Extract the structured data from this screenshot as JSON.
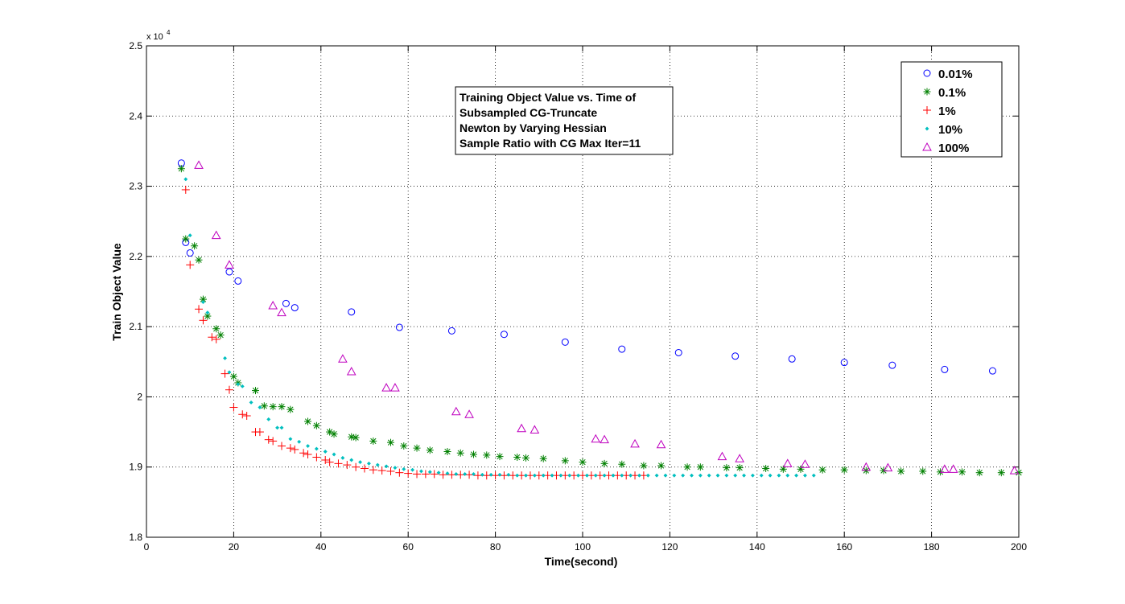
{
  "chart_data": {
    "type": "scatter",
    "title": "",
    "xlabel": "Time(second)",
    "ylabel": "Train Object Value",
    "xlim": [
      0,
      200
    ],
    "ylim": [
      18000,
      25000
    ],
    "x_ticks": [
      0,
      20,
      40,
      60,
      80,
      100,
      120,
      140,
      160,
      180,
      200
    ],
    "x_tick_labels": [
      "0",
      "20",
      "40",
      "60",
      "80",
      "100",
      "120",
      "140",
      "160",
      "180",
      "200"
    ],
    "y_ticks": [
      18000,
      19000,
      20000,
      21000,
      22000,
      23000,
      24000,
      25000
    ],
    "y_tick_labels": [
      "1.8",
      "1.9",
      "2",
      "2.1",
      "2.2",
      "2.3",
      "2.4",
      "2.5"
    ],
    "y_exponent_base": "x 10",
    "y_exponent_power": "4",
    "grid": true,
    "legend_position": "top-right",
    "annotation": [
      "Training Object Value vs. Time of",
      "Subsampled CG-Truncate",
      "Newton by Varying Hessian",
      "Sample Ratio with CG Max Iter=11"
    ],
    "series": [
      {
        "name": "0.01%",
        "marker": "circle",
        "color": "#0000ff",
        "x": [
          8,
          9,
          10,
          19,
          21,
          32,
          34,
          47,
          58,
          70,
          82,
          96,
          109,
          122,
          135,
          148,
          160,
          171,
          183,
          194
        ],
        "y": [
          23330,
          22200,
          22050,
          21780,
          21650,
          21330,
          21270,
          21210,
          20990,
          20940,
          20890,
          20780,
          20680,
          20630,
          20580,
          20540,
          20490,
          20450,
          20390,
          20370
        ]
      },
      {
        "name": "0.1%",
        "marker": "star",
        "color": "#008000",
        "x": [
          8,
          9,
          11,
          12,
          13,
          14,
          16,
          17,
          20,
          21,
          25,
          27,
          29,
          31,
          33,
          37,
          39,
          42,
          43,
          47,
          48,
          52,
          56,
          59,
          62,
          65,
          69,
          72,
          75,
          78,
          81,
          85,
          87,
          91,
          96,
          100,
          105,
          109,
          114,
          118,
          124,
          127,
          133,
          136,
          142,
          146,
          150,
          155,
          160,
          165,
          169,
          173,
          178,
          182,
          187,
          191,
          196,
          200
        ],
        "y": [
          23250,
          22250,
          22150,
          21950,
          21390,
          21150,
          20970,
          20880,
          20290,
          20200,
          20090,
          19870,
          19860,
          19860,
          19820,
          19650,
          19590,
          19500,
          19470,
          19430,
          19420,
          19370,
          19350,
          19300,
          19270,
          19240,
          19220,
          19200,
          19180,
          19170,
          19150,
          19140,
          19130,
          19120,
          19090,
          19070,
          19050,
          19040,
          19020,
          19020,
          19000,
          19000,
          18990,
          18990,
          18980,
          18970,
          18970,
          18960,
          18960,
          18950,
          18950,
          18940,
          18940,
          18930,
          18930,
          18920,
          18920,
          18920
        ]
      },
      {
        "name": "1%",
        "marker": "plus",
        "color": "#ff0000",
        "x": [
          9,
          10,
          12,
          13,
          15,
          16,
          18,
          19,
          20,
          22,
          23,
          25,
          26,
          28,
          29,
          31,
          33,
          34,
          36,
          37,
          39,
          41,
          42,
          44,
          46,
          48,
          50,
          52,
          54,
          56,
          58,
          60,
          62,
          64,
          66,
          68,
          70,
          72,
          74,
          76,
          78,
          80,
          82,
          84,
          86,
          88,
          90,
          92,
          94,
          96,
          98,
          100,
          102,
          104,
          106,
          108,
          110,
          112,
          114
        ],
        "y": [
          22950,
          21880,
          21250,
          21090,
          20850,
          20820,
          20330,
          20100,
          19850,
          19750,
          19730,
          19500,
          19500,
          19390,
          19370,
          19300,
          19270,
          19250,
          19200,
          19180,
          19140,
          19100,
          19070,
          19050,
          19030,
          19000,
          18980,
          18960,
          18950,
          18940,
          18920,
          18910,
          18900,
          18900,
          18900,
          18890,
          18890,
          18890,
          18890,
          18880,
          18880,
          18880,
          18880,
          18880,
          18880,
          18880,
          18880,
          18880,
          18880,
          18880,
          18880,
          18880,
          18880,
          18880,
          18880,
          18880,
          18880,
          18880,
          18880
        ]
      },
      {
        "name": "10%",
        "marker": "dot",
        "color": "#00bfbf",
        "x": [
          9,
          10,
          13,
          14,
          18,
          19,
          21,
          22,
          24,
          26,
          28,
          30,
          31,
          33,
          35,
          37,
          39,
          41,
          43,
          45,
          47,
          49,
          51,
          53,
          55,
          57,
          59,
          61,
          63,
          65,
          67,
          69,
          71,
          73,
          75,
          77,
          79,
          81,
          83,
          85,
          87,
          89,
          91,
          93,
          95,
          97,
          99,
          101,
          103,
          105,
          107,
          109,
          111,
          113,
          115,
          117,
          119,
          121,
          123,
          125,
          127,
          129,
          131,
          133,
          135,
          137,
          139,
          141,
          143,
          145,
          147,
          149,
          151,
          153
        ],
        "y": [
          23100,
          22300,
          21350,
          21200,
          20550,
          20350,
          20180,
          20150,
          19920,
          19850,
          19680,
          19560,
          19560,
          19400,
          19360,
          19300,
          19260,
          19220,
          19180,
          19130,
          19100,
          19070,
          19050,
          19030,
          19010,
          18990,
          18970,
          18960,
          18940,
          18930,
          18920,
          18910,
          18900,
          18900,
          18900,
          18890,
          18890,
          18890,
          18890,
          18880,
          18880,
          18880,
          18880,
          18880,
          18880,
          18880,
          18880,
          18880,
          18880,
          18880,
          18880,
          18880,
          18880,
          18880,
          18880,
          18880,
          18880,
          18880,
          18880,
          18880,
          18880,
          18880,
          18880,
          18880,
          18880,
          18880,
          18880,
          18880,
          18880,
          18880,
          18880,
          18880,
          18880,
          18880
        ]
      },
      {
        "name": "100%",
        "marker": "triangle",
        "color": "#bf00bf",
        "x": [
          12,
          16,
          19,
          29,
          31,
          45,
          47,
          55,
          57,
          71,
          74,
          86,
          89,
          103,
          105,
          112,
          118,
          132,
          136,
          147,
          151,
          165,
          170,
          183,
          185,
          199
        ],
        "y": [
          23300,
          22300,
          21880,
          21300,
          21200,
          20540,
          20360,
          20130,
          20130,
          19790,
          19750,
          19550,
          19530,
          19400,
          19390,
          19330,
          19320,
          19150,
          19120,
          19050,
          19040,
          19000,
          18990,
          18970,
          18970,
          18950
        ]
      }
    ]
  }
}
